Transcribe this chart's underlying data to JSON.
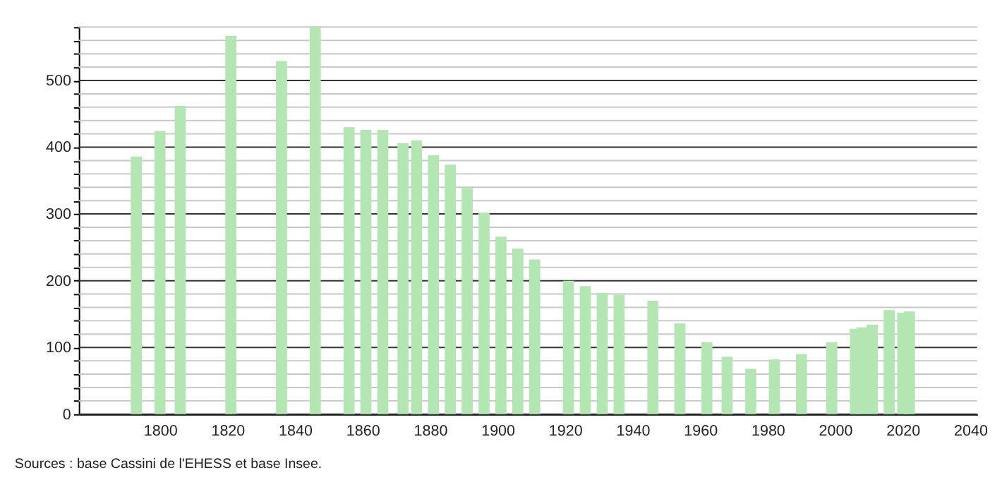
{
  "chart_data": {
    "type": "bar",
    "x": [
      1793,
      1800,
      1806,
      1821,
      1836,
      1846,
      1856,
      1861,
      1866,
      1872,
      1876,
      1881,
      1886,
      1891,
      1896,
      1901,
      1906,
      1911,
      1921,
      1926,
      1931,
      1936,
      1946,
      1954,
      1962,
      1968,
      1975,
      1982,
      1990,
      1999,
      2006,
      2008,
      2011,
      2016,
      2020,
      2022
    ],
    "values": [
      386,
      424,
      462,
      567,
      529,
      580,
      430,
      426,
      426,
      406,
      410,
      388,
      374,
      339,
      302,
      266,
      248,
      232,
      200,
      192,
      182,
      179,
      170,
      136,
      108,
      86,
      68,
      82,
      90,
      108,
      128,
      130,
      134,
      156,
      152,
      154
    ],
    "color": "#b3e6b3",
    "xlim": [
      1778,
      2040
    ],
    "xticks": [
      1800,
      1820,
      1840,
      1860,
      1880,
      1900,
      1920,
      1940,
      1960,
      1980,
      2000,
      2020,
      2040
    ],
    "ylim": [
      0,
      580
    ],
    "yticks": [
      0,
      {
        "value": 20,
        "label": null
      },
      {
        "value": 40,
        "label": null
      },
      {
        "value": 60,
        "label": null
      },
      {
        "value": 80,
        "label": null
      },
      100,
      {
        "value": 120,
        "label": null
      },
      {
        "value": 140,
        "label": null
      },
      {
        "value": 160,
        "label": null
      },
      {
        "value": 180,
        "label": null
      },
      200,
      {
        "value": 220,
        "label": null
      },
      {
        "value": 240,
        "label": null
      },
      {
        "value": 260,
        "label": null
      },
      {
        "value": 280,
        "label": null
      },
      300,
      {
        "value": 320,
        "label": null
      },
      {
        "value": 340,
        "label": null
      },
      {
        "value": 360,
        "label": null
      },
      {
        "value": 380,
        "label": null
      },
      400,
      {
        "value": 420,
        "label": null
      },
      {
        "value": 440,
        "label": null
      },
      {
        "value": 460,
        "label": null
      },
      {
        "value": 480,
        "label": null
      },
      500,
      {
        "value": 520,
        "label": null
      },
      {
        "value": 540,
        "label": null
      },
      {
        "value": 560,
        "label": null
      },
      {
        "value": 580,
        "label": null
      }
    ],
    "grid": true,
    "annotations": [
      "Sources : base Cassini de l'EHESS et base Insee."
    ]
  }
}
